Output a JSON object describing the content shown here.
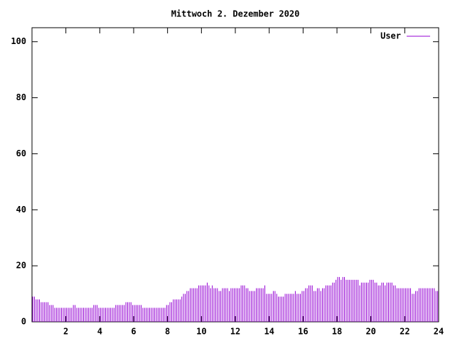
{
  "chart_data": {
    "type": "impulse",
    "title": "Mittwoch 2. Dezember 2020",
    "x": [
      0,
      0.1,
      0.2,
      0.3,
      0.4,
      0.5,
      0.6,
      0.7,
      0.8,
      0.9,
      1,
      1.1,
      1.2,
      1.3,
      1.4,
      1.5,
      1.6,
      1.7,
      1.8,
      1.9,
      2,
      2.1,
      2.2,
      2.3,
      2.4,
      2.5,
      2.6,
      2.7,
      2.8,
      2.9,
      3,
      3.1,
      3.2,
      3.3,
      3.4,
      3.5,
      3.6,
      3.7,
      3.8,
      3.9,
      4,
      4.1,
      4.2,
      4.3,
      4.4,
      4.5,
      4.6,
      4.7,
      4.8,
      4.9,
      5,
      5.1,
      5.2,
      5.3,
      5.4,
      5.5,
      5.6,
      5.7,
      5.8,
      5.9,
      6,
      6.1,
      6.2,
      6.3,
      6.4,
      6.5,
      6.6,
      6.7,
      6.8,
      6.9,
      7,
      7.1,
      7.2,
      7.3,
      7.4,
      7.5,
      7.6,
      7.7,
      7.8,
      7.9,
      8,
      8.1,
      8.2,
      8.3,
      8.4,
      8.5,
      8.6,
      8.7,
      8.8,
      8.9,
      9,
      9.1,
      9.2,
      9.3,
      9.4,
      9.5,
      9.6,
      9.7,
      9.8,
      9.9,
      10,
      10.1,
      10.2,
      10.3,
      10.4,
      10.5,
      10.6,
      10.7,
      10.8,
      10.9,
      11,
      11.1,
      11.2,
      11.3,
      11.4,
      11.5,
      11.6,
      11.7,
      11.8,
      11.9,
      12,
      12.1,
      12.2,
      12.3,
      12.4,
      12.5,
      12.6,
      12.7,
      12.8,
      12.9,
      13,
      13.1,
      13.2,
      13.3,
      13.4,
      13.5,
      13.6,
      13.7,
      13.8,
      13.9,
      14,
      14.1,
      14.2,
      14.3,
      14.4,
      14.5,
      14.6,
      14.7,
      14.8,
      14.9,
      15,
      15.1,
      15.2,
      15.3,
      15.4,
      15.5,
      15.6,
      15.7,
      15.8,
      15.9,
      16,
      16.1,
      16.2,
      16.3,
      16.4,
      16.5,
      16.6,
      16.7,
      16.8,
      16.9,
      17,
      17.1,
      17.2,
      17.3,
      17.4,
      17.5,
      17.6,
      17.7,
      17.8,
      17.9,
      18,
      18.1,
      18.2,
      18.3,
      18.4,
      18.5,
      18.6,
      18.7,
      18.8,
      18.9,
      19,
      19.1,
      19.2,
      19.3,
      19.4,
      19.5,
      19.6,
      19.7,
      19.8,
      19.9,
      20,
      20.1,
      20.2,
      20.3,
      20.4,
      20.5,
      20.6,
      20.7,
      20.8,
      20.9,
      21,
      21.1,
      21.2,
      21.3,
      21.4,
      21.5,
      21.6,
      21.7,
      21.8,
      21.9,
      22,
      22.1,
      22.2,
      22.3,
      22.4,
      22.5,
      22.6,
      22.7,
      22.8,
      22.9,
      23,
      23.1,
      23.2,
      23.3,
      23.4,
      23.5,
      23.6,
      23.7,
      23.8,
      23.9
    ],
    "series": [
      {
        "name": "User",
        "color": "#9400d3",
        "values": [
          9,
          9,
          8,
          8,
          8,
          7,
          7,
          7,
          7,
          7,
          6,
          6,
          6,
          5,
          5,
          5,
          5,
          5,
          5,
          5,
          5,
          5,
          5,
          5,
          6,
          6,
          5,
          5,
          5,
          5,
          5,
          5,
          5,
          5,
          5,
          5,
          6,
          6,
          6,
          5,
          5,
          5,
          5,
          5,
          5,
          5,
          5,
          5,
          5,
          6,
          6,
          6,
          6,
          6,
          6,
          7,
          7,
          7,
          7,
          6,
          6,
          6,
          6,
          6,
          6,
          5,
          5,
          5,
          5,
          5,
          5,
          5,
          5,
          5,
          5,
          5,
          5,
          5,
          5,
          6,
          6,
          7,
          7,
          8,
          8,
          8,
          8,
          8,
          9,
          10,
          10,
          11,
          11,
          12,
          12,
          12,
          12,
          12,
          13,
          13,
          13,
          13,
          13,
          14,
          13,
          12,
          13,
          12,
          12,
          12,
          11,
          11,
          12,
          12,
          12,
          12,
          11,
          12,
          12,
          12,
          12,
          12,
          12,
          13,
          13,
          13,
          12,
          12,
          11,
          11,
          11,
          11,
          12,
          12,
          12,
          12,
          12,
          13,
          10,
          10,
          10,
          10,
          11,
          11,
          10,
          9,
          9,
          9,
          9,
          10,
          10,
          10,
          10,
          10,
          10,
          11,
          10,
          10,
          10,
          11,
          11,
          12,
          12,
          13,
          13,
          13,
          11,
          11,
          12,
          12,
          11,
          12,
          12,
          13,
          13,
          13,
          13,
          14,
          14,
          15,
          16,
          16,
          15,
          16,
          16,
          15,
          15,
          15,
          15,
          15,
          15,
          15,
          15,
          13,
          14,
          14,
          14,
          14,
          14,
          15,
          15,
          15,
          14,
          14,
          13,
          13,
          14,
          14,
          13,
          14,
          14,
          14,
          14,
          13,
          13,
          12,
          12,
          12,
          12,
          12,
          12,
          12,
          12,
          12,
          10,
          10,
          11,
          11,
          12,
          12,
          12,
          12,
          12,
          12,
          12,
          12,
          12,
          12,
          11,
          11
        ]
      }
    ],
    "xlim": [
      0,
      24
    ],
    "xticks": [
      2,
      4,
      6,
      8,
      10,
      12,
      14,
      16,
      18,
      20,
      22,
      24
    ],
    "ylim": [
      0,
      105
    ],
    "yticks": [
      0,
      20,
      40,
      60,
      80,
      100
    ],
    "legend": "top-right"
  }
}
